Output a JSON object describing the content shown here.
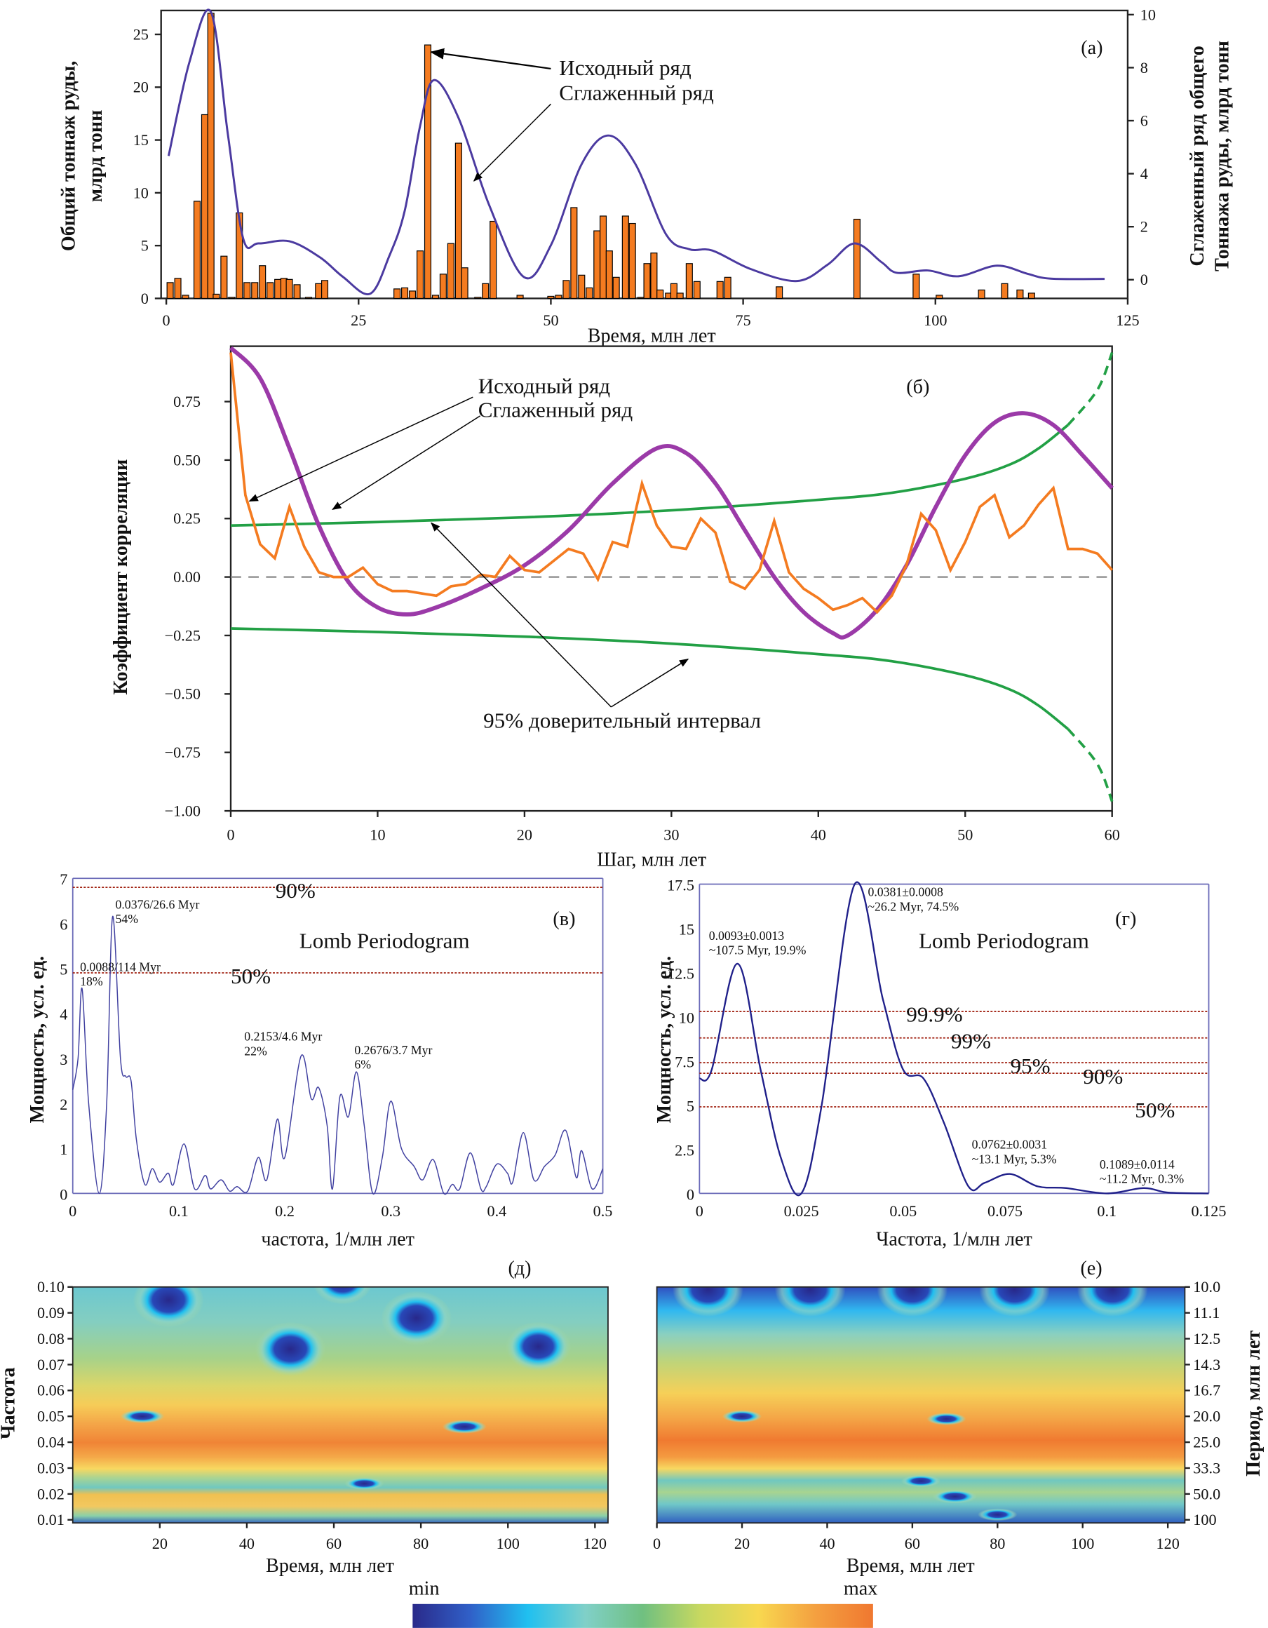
{
  "chart_data": [
    {
      "id": "a",
      "type": "bar+line",
      "panel_label": "(а)",
      "xlabel": "Время, млн лет",
      "ylabel": [
        "Общий тоннаж руды,",
        "млрд  тонн"
      ],
      "ylabel_right": [
        "Сглаженный ряд общего",
        "Тоннажа руды, млрд тонн"
      ],
      "xlim": [
        0,
        125
      ],
      "ylim": [
        0,
        27.5
      ],
      "ylim_right": [
        -0.7,
        10
      ],
      "xticks": [
        0,
        25,
        50,
        75,
        100,
        125
      ],
      "yticks": [
        0,
        5,
        10,
        15,
        20,
        25
      ],
      "yticks_right": [
        0,
        2,
        4,
        6,
        8,
        10
      ],
      "annotations": [
        "Исходный ряд",
        "Сглаженный ряд"
      ],
      "colors": {
        "bars": "#f47b20",
        "smoothed": "#4b3aa0"
      },
      "bars": {
        "x": [
          0.5,
          1.5,
          2.5,
          4,
          5,
          5.8,
          6.5,
          7.5,
          8.5,
          9.5,
          10.5,
          11.5,
          12.5,
          13.5,
          14.5,
          15.3,
          16,
          17,
          18.5,
          19.8,
          20.6,
          30,
          31,
          32,
          33,
          34,
          35,
          36,
          37,
          38,
          38.8,
          40.5,
          41.5,
          42.5,
          46,
          50,
          51,
          52,
          53,
          54,
          55,
          56,
          56.8,
          57.6,
          58.5,
          59.7,
          60.6,
          61.7,
          62.5,
          63.4,
          64.2,
          65.3,
          66,
          66.8,
          68,
          69,
          72,
          73,
          79.7,
          89.8,
          97.5,
          100.5,
          106,
          109,
          111,
          112.5
        ],
        "y": [
          1.5,
          1.9,
          0.3,
          9.2,
          17.4,
          27,
          0.4,
          4,
          0.1,
          8.1,
          1.5,
          1.5,
          3.1,
          1.5,
          1.8,
          1.9,
          1.8,
          1.3,
          0.1,
          1.4,
          1.7,
          0.9,
          1.0,
          0.7,
          4.5,
          24,
          0.3,
          2.3,
          5.2,
          14.7,
          2.9,
          0.1,
          1.4,
          7.3,
          0.3,
          0.2,
          0.3,
          1.7,
          8.6,
          2.2,
          1.0,
          6.4,
          7.8,
          4.5,
          2.0,
          7.8,
          7.1,
          0.1,
          3.3,
          4.3,
          0.8,
          0.5,
          1.4,
          0.5,
          3.3,
          1.6,
          1.6,
          2.0,
          1.1,
          7.5,
          2.3,
          0.3,
          0.8,
          1.4,
          0.8,
          0.5
        ]
      },
      "smoothed": {
        "x": [
          0.3,
          3,
          5.8,
          8,
          10,
          12,
          16,
          20,
          23,
          26.5,
          29,
          31,
          33,
          34.8,
          38,
          42,
          46.5,
          50,
          54,
          57.5,
          61,
          65,
          68,
          71,
          76,
          82,
          86,
          89.5,
          93,
          95,
          99,
          103,
          108,
          112,
          115,
          122
        ],
        "y": [
          4.67,
          8.2,
          10.1,
          5.5,
          1.55,
          1.37,
          1.45,
          0.84,
          0.1,
          -0.53,
          0.9,
          2.6,
          5.8,
          7.53,
          6.1,
          2.8,
          0.1,
          1.3,
          4.36,
          5.44,
          4.36,
          1.7,
          1.15,
          1.1,
          0.4,
          -0.05,
          0.57,
          1.37,
          0.66,
          0.26,
          0.35,
          0.13,
          0.53,
          0.22,
          0.04,
          0.03
        ]
      }
    },
    {
      "id": "b",
      "type": "line",
      "panel_label": "(б)",
      "xlabel": "Шаг, млн лет",
      "ylabel": "Коэффициент корреляции",
      "xlim": [
        0,
        60
      ],
      "ylim": [
        -1.0,
        0.98
      ],
      "xticks": [
        0,
        10,
        20,
        30,
        40,
        50,
        60
      ],
      "yticks": [
        "0.75",
        "0.50",
        "0.25",
        "0.00",
        "−0.25",
        "−0.50",
        "−0.75",
        "−1.00"
      ],
      "ytick_values": [
        0.75,
        0.5,
        0.25,
        0,
        -0.25,
        -0.5,
        -0.75,
        -1.0
      ],
      "annotations": [
        "Исходный ряд",
        "Сглаженный ряд",
        "95% доверительный интервал"
      ],
      "colors": {
        "raw": "#f47b20",
        "smoothed": "#9b3aa8",
        "ci": "#22a045",
        "zero": "#888888"
      },
      "raw": {
        "x": [
          0,
          1,
          2,
          3,
          4,
          5,
          6,
          7,
          8,
          9,
          10,
          11,
          12,
          13,
          14,
          15,
          16,
          17,
          18,
          19,
          20,
          21,
          22,
          23,
          24,
          25,
          26,
          27,
          28,
          29,
          30,
          31,
          32,
          33,
          34,
          35,
          36,
          37,
          38,
          39,
          40,
          41,
          42,
          43,
          44,
          45,
          46,
          47,
          48,
          49,
          50,
          51,
          52,
          53,
          54,
          55,
          56,
          57,
          58,
          59,
          60
        ],
        "y": [
          0.96,
          0.35,
          0.14,
          0.08,
          0.3,
          0.13,
          0.02,
          0.0,
          0.0,
          0.04,
          -0.03,
          -0.06,
          -0.06,
          -0.07,
          -0.08,
          -0.04,
          -0.03,
          0.01,
          0.0,
          0.09,
          0.03,
          0.02,
          0.07,
          0.12,
          0.1,
          -0.01,
          0.15,
          0.13,
          0.4,
          0.22,
          0.13,
          0.12,
          0.25,
          0.19,
          -0.02,
          -0.05,
          0.03,
          0.24,
          0.02,
          -0.05,
          -0.09,
          -0.14,
          -0.12,
          -0.09,
          -0.15,
          -0.08,
          0.05,
          0.27,
          0.2,
          0.03,
          0.15,
          0.3,
          0.35,
          0.17,
          0.22,
          0.31,
          0.38,
          0.12,
          0.12,
          0.1,
          0.03
        ]
      },
      "smoothed": {
        "x": [
          0,
          2,
          4,
          6,
          8,
          10,
          12,
          14,
          17,
          20,
          23,
          26,
          29,
          31,
          33,
          35,
          37,
          39,
          41,
          42,
          44,
          46,
          48,
          50,
          52,
          54,
          56,
          58,
          60
        ],
        "y": [
          0.98,
          0.85,
          0.55,
          0.22,
          -0.02,
          -0.13,
          -0.16,
          -0.13,
          -0.05,
          0.05,
          0.2,
          0.4,
          0.55,
          0.53,
          0.4,
          0.2,
          0.0,
          -0.15,
          -0.24,
          -0.25,
          -0.14,
          0.05,
          0.3,
          0.52,
          0.66,
          0.7,
          0.65,
          0.52,
          0.38
        ]
      },
      "ci_95": {
        "x": [
          0,
          10,
          20,
          30,
          40,
          45,
          50,
          53,
          55,
          57,
          59,
          60
        ],
        "upper": [
          0.22,
          0.235,
          0.255,
          0.285,
          0.33,
          0.36,
          0.42,
          0.48,
          0.55,
          0.65,
          0.8,
          0.96
        ]
      }
    },
    {
      "id": "c",
      "type": "line",
      "panel_label": "(в)",
      "title": "Lomb Periodogram",
      "xlabel": "частота, 1/млн лет",
      "ylabel": "Мощность, усл. ед.",
      "xlim": [
        0,
        0.5
      ],
      "ylim": [
        0,
        7
      ],
      "xticks": [
        "0",
        "0.1",
        "0.2",
        "0.3",
        "0.4",
        "0.5"
      ],
      "yticks": [
        0,
        1,
        2,
        3,
        4,
        5,
        6,
        7
      ],
      "thresholds": [
        {
          "label": "90%",
          "value": 6.8
        },
        {
          "label": "50%",
          "value": 4.9
        }
      ],
      "peaks": [
        {
          "text": [
            "0.0376/26.6 Myr",
            "54%"
          ],
          "x": 0.0376,
          "y": 6.15
        },
        {
          "text": [
            "0.0088/114 Myr",
            "18%"
          ],
          "x": 0.0088,
          "y": 4.55
        },
        {
          "text": [
            "0.2153/4.6 Myr",
            "22%"
          ],
          "x": 0.2153,
          "y": 3.05
        },
        {
          "text": [
            "0.2676/3.7 Myr",
            "6%"
          ],
          "x": 0.2676,
          "y": 2.7
        }
      ],
      "colors": {
        "line": "#4040a0",
        "threshold": "#a02010"
      },
      "series": {
        "x": [
          0,
          0.005,
          0.0088,
          0.015,
          0.025,
          0.032,
          0.0376,
          0.045,
          0.05,
          0.055,
          0.06,
          0.068,
          0.075,
          0.082,
          0.09,
          0.095,
          0.105,
          0.115,
          0.125,
          0.13,
          0.14,
          0.148,
          0.155,
          0.165,
          0.175,
          0.183,
          0.193,
          0.2,
          0.2153,
          0.225,
          0.232,
          0.24,
          0.245,
          0.252,
          0.26,
          0.2676,
          0.275,
          0.283,
          0.292,
          0.3,
          0.31,
          0.322,
          0.33,
          0.34,
          0.35,
          0.358,
          0.365,
          0.375,
          0.385,
          0.39,
          0.4,
          0.41,
          0.415,
          0.425,
          0.435,
          0.445,
          0.455,
          0.465,
          0.475,
          0.48,
          0.49,
          0.5
        ],
        "y": [
          2.3,
          3,
          4.55,
          2,
          0,
          2,
          6.15,
          3,
          2.6,
          2.5,
          1.2,
          0.2,
          0.55,
          0.25,
          0.45,
          0.2,
          1.1,
          0.1,
          0.4,
          0.1,
          0.3,
          0.05,
          0.15,
          0.05,
          0.8,
          0.3,
          1.65,
          0.8,
          3.05,
          2.1,
          2.35,
          1.5,
          0.1,
          2.15,
          1.7,
          2.7,
          1.5,
          0,
          0.8,
          2.05,
          1.0,
          0.6,
          0.3,
          0.75,
          0,
          0.2,
          0.1,
          0.9,
          0.1,
          0.15,
          0.65,
          0.45,
          0.25,
          1.35,
          0.3,
          0.6,
          0.85,
          1.4,
          0.35,
          0.95,
          0.1,
          0.55
        ]
      }
    },
    {
      "id": "d",
      "type": "line",
      "panel_label": "(г)",
      "title": "Lomb Periodogram",
      "xlabel": "Частота, 1/млн лет",
      "ylabel": "Мощность, усл. ед.",
      "xlim": [
        0,
        0.125
      ],
      "ylim": [
        0,
        17.5
      ],
      "xticks": [
        "0",
        "0.025",
        "0.05",
        "0.075",
        "0.1",
        "0.125"
      ],
      "yticks": [
        "0",
        "2.5",
        "5",
        "7.5",
        "10",
        "12.5",
        "15",
        "17.5"
      ],
      "thresholds": [
        {
          "label": "99.9%",
          "value": 10.3
        },
        {
          "label": "99%",
          "value": 8.8
        },
        {
          "label": "95%",
          "value": 7.4
        },
        {
          "label": "90%",
          "value": 6.8
        },
        {
          "label": "50%",
          "value": 4.9
        }
      ],
      "peaks": [
        {
          "text": [
            "0.0381±0.0008",
            "~26.2 Myr, 74.5%"
          ],
          "x": 0.0381,
          "y": 17.5
        },
        {
          "text": [
            "0.0093±0.0013",
            "~107.5 Myr, 19.9%"
          ],
          "x": 0.0093,
          "y": 13
        },
        {
          "text": [
            "0.0762±0.0031",
            "~13.1 Myr, 5.3%"
          ],
          "x": 0.0762,
          "y": 1.1
        },
        {
          "text": [
            "0.1089±0.0114",
            "~11.2 Myr, 0.3%"
          ],
          "x": 0.1089,
          "y": 0.3
        }
      ],
      "colors": {
        "line": "#20208a",
        "threshold": "#a02010"
      },
      "series": {
        "x": [
          0,
          0.003,
          0.0093,
          0.015,
          0.02,
          0.025,
          0.03,
          0.0381,
          0.045,
          0.05,
          0.055,
          0.06,
          0.066,
          0.07,
          0.0762,
          0.083,
          0.09,
          0.1,
          0.109,
          0.115,
          0.125
        ],
        "y": [
          6.5,
          7,
          13,
          7,
          2,
          0,
          5,
          17.5,
          11,
          7,
          6.5,
          4,
          0.4,
          0.6,
          1.1,
          0.4,
          0.3,
          0,
          0.3,
          0.05,
          0
        ]
      }
    },
    {
      "id": "e",
      "type": "heatmap",
      "panel_label": "(д)",
      "xlabel": "Время, млн лет",
      "ylabel": "Частота",
      "xlim": [
        0,
        123
      ],
      "ylim": [
        0.01,
        0.1
      ],
      "xticks": [
        20,
        40,
        60,
        80,
        100,
        120
      ],
      "yticks": [
        "0.10",
        "0.09",
        "0.08",
        "0.07",
        "0.06",
        "0.05",
        "0.04",
        "0.03",
        "0.02",
        "0.01"
      ],
      "scale_label": "min",
      "minima": [
        [
          22,
          0.095,
          1
        ],
        [
          50,
          0.076,
          1
        ],
        [
          79,
          0.088,
          1
        ],
        [
          107,
          0.077,
          0.9
        ],
        [
          62,
          0.102,
          0.8
        ],
        [
          16,
          0.05,
          0.6
        ],
        [
          90,
          0.046,
          0.6
        ],
        [
          67,
          0.024,
          0.5
        ]
      ]
    },
    {
      "id": "f",
      "type": "heatmap",
      "panel_label": "(е)",
      "xlabel": "Время, млн лет",
      "ylabel_right": "Период, млн лет",
      "xlim": [
        0,
        124
      ],
      "ylim": [
        0.01,
        0.1
      ],
      "xticks": [
        0,
        20,
        40,
        60,
        80,
        100,
        120
      ],
      "yticks_right": [
        "10.0",
        "11.1",
        "12.5",
        "14.3",
        "16.7",
        "20.0",
        "25.0",
        "33.3",
        "50.0",
        "100"
      ],
      "scale_label": "max",
      "minima": [
        [
          12,
          0.099,
          1
        ],
        [
          36,
          0.099,
          1
        ],
        [
          60,
          0.099,
          1
        ],
        [
          84,
          0.099,
          1
        ],
        [
          107,
          0.099,
          1
        ],
        [
          20,
          0.05,
          0.5
        ],
        [
          68,
          0.049,
          0.5
        ],
        [
          62,
          0.025,
          0.5
        ],
        [
          70,
          0.019,
          0.6
        ],
        [
          80,
          0.012,
          0.5
        ]
      ]
    }
  ],
  "colorbar": {
    "min_label": "min",
    "max_label": "max",
    "colors": [
      "#2a2a8a",
      "#3060c8",
      "#20c0f0",
      "#80d0c8",
      "#70c080",
      "#c8d860",
      "#f8d850",
      "#f4a040",
      "#f07830"
    ]
  }
}
